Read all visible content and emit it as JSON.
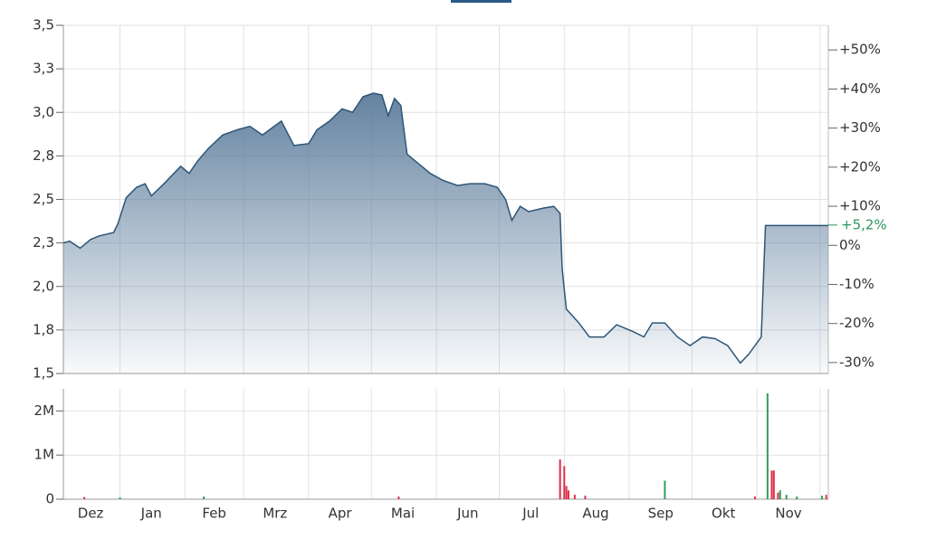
{
  "chart_data": [
    {
      "type": "area",
      "color": "#2d5677",
      "x": [
        0,
        3,
        8,
        13,
        17,
        24,
        26,
        30,
        35,
        39,
        42,
        48,
        52,
        56,
        60,
        64,
        69,
        76,
        83,
        89,
        95,
        104,
        110,
        117,
        121,
        127,
        133,
        138,
        143,
        148,
        152,
        155,
        158,
        161,
        164,
        168,
        175,
        181,
        188,
        194,
        201,
        207,
        211,
        214,
        218,
        222,
        229,
        234,
        237,
        238,
        240,
        246,
        251,
        258,
        264,
        272,
        277,
        281,
        287,
        293,
        299,
        305,
        311,
        317,
        323,
        327,
        333,
        335,
        346,
        365
      ],
      "values": [
        2.25,
        2.26,
        2.22,
        2.27,
        2.29,
        2.31,
        2.36,
        2.51,
        2.57,
        2.59,
        2.52,
        2.59,
        2.64,
        2.69,
        2.65,
        2.72,
        2.79,
        2.87,
        2.9,
        2.92,
        2.87,
        2.95,
        2.81,
        2.82,
        2.9,
        2.95,
        3.02,
        3.0,
        3.09,
        3.11,
        3.1,
        2.98,
        3.08,
        3.04,
        2.76,
        2.72,
        2.65,
        2.61,
        2.58,
        2.59,
        2.59,
        2.57,
        2.5,
        2.38,
        2.46,
        2.43,
        2.45,
        2.46,
        2.42,
        2.1,
        1.87,
        1.79,
        1.71,
        1.71,
        1.78,
        1.74,
        1.71,
        1.79,
        1.79,
        1.71,
        1.66,
        1.71,
        1.7,
        1.66,
        1.56,
        1.61,
        1.71,
        2.35,
        2.35,
        2.35
      ],
      "xlim": [
        0,
        365
      ],
      "xgrid": [
        27,
        58,
        86,
        117,
        147,
        178,
        208,
        239,
        270,
        300,
        331,
        361
      ],
      "ylim": [
        1.5,
        3.5
      ],
      "yticks": [
        {
          "value": 1.5,
          "label": "1,5"
        },
        {
          "value": 1.75,
          "label": "1,8"
        },
        {
          "value": 2.0,
          "label": "2,0"
        },
        {
          "value": 2.25,
          "label": "2,3"
        },
        {
          "value": 2.5,
          "label": "2,5"
        },
        {
          "value": 2.75,
          "label": "2,8"
        },
        {
          "value": 3.0,
          "label": "3,0"
        },
        {
          "value": 3.25,
          "label": "3,3"
        },
        {
          "value": 3.5,
          "label": "3,5"
        }
      ],
      "y2lim": [
        -32.8,
        56.3
      ],
      "y2ticks": [
        {
          "value": 50,
          "label": "+50%"
        },
        {
          "value": 40,
          "label": "+40%"
        },
        {
          "value": 30,
          "label": "+30%"
        },
        {
          "value": 20,
          "label": "+20%"
        },
        {
          "value": 10,
          "label": "+10%"
        },
        {
          "value": 0,
          "label": "0%"
        },
        {
          "value": -10,
          "label": "-10%"
        },
        {
          "value": -20,
          "label": "-20%"
        },
        {
          "value": -30,
          "label": "-30%"
        }
      ],
      "annotation": {
        "value": 5.2,
        "label": "+5,2%",
        "color": "#2e9560"
      }
    },
    {
      "type": "bar",
      "xlim": [
        0,
        365
      ],
      "ylim": [
        0,
        2500000
      ],
      "yticks": [
        {
          "value": 0,
          "label": "0"
        },
        {
          "value": 1000000,
          "label": "1M"
        },
        {
          "value": 2000000,
          "label": "2M"
        }
      ],
      "xticks": [
        {
          "value": 13,
          "label": "Dez"
        },
        {
          "value": 42,
          "label": "Jan"
        },
        {
          "value": 72,
          "label": "Feb"
        },
        {
          "value": 101,
          "label": "Mrz"
        },
        {
          "value": 132,
          "label": "Apr"
        },
        {
          "value": 162,
          "label": "Mai"
        },
        {
          "value": 193,
          "label": "Jun"
        },
        {
          "value": 223,
          "label": "Jul"
        },
        {
          "value": 254,
          "label": "Aug"
        },
        {
          "value": 285,
          "label": "Sep"
        },
        {
          "value": 315,
          "label": "Okt"
        },
        {
          "value": 346,
          "label": "Nov"
        }
      ],
      "series": [
        {
          "color": "#e0304a",
          "x": [
            10,
            160,
            237,
            239,
            240,
            241,
            244,
            249,
            330,
            338,
            339,
            341,
            364
          ],
          "values": [
            50000,
            60000,
            900000,
            750000,
            300000,
            200000,
            100000,
            80000,
            60000,
            650000,
            650000,
            150000,
            100000
          ]
        },
        {
          "color": "#2e9e5b",
          "x": [
            27,
            67,
            287,
            336,
            342,
            345,
            350,
            362
          ],
          "values": [
            40000,
            60000,
            420000,
            2400000,
            200000,
            100000,
            60000,
            80000
          ]
        }
      ]
    }
  ]
}
